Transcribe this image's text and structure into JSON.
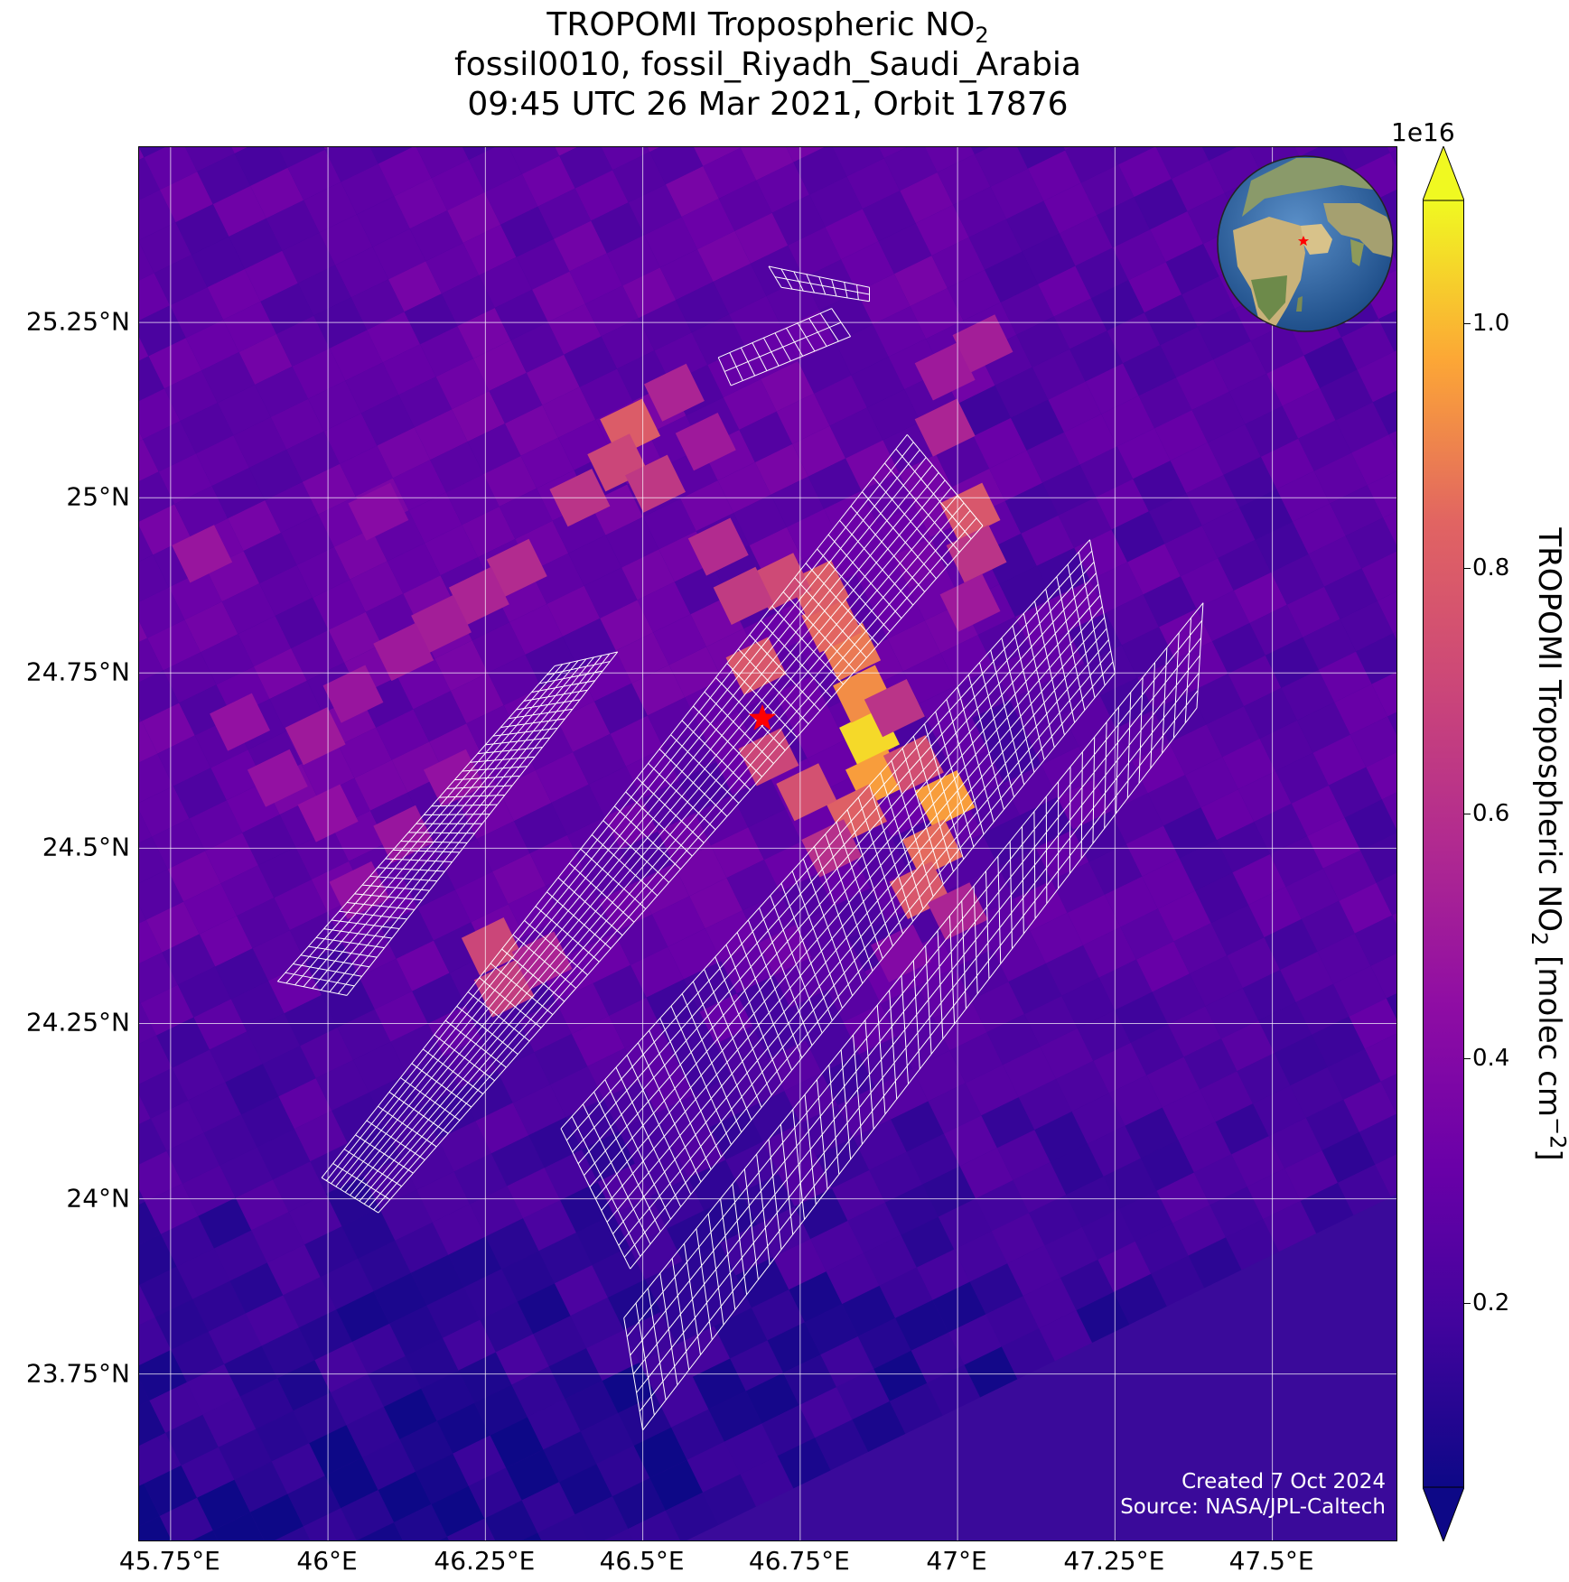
{
  "title": {
    "line1_main": "TROPOMI Tropospheric NO",
    "line1_sub": "2",
    "line2": "fossil0010, fossil_Riyadh_Saudi_Arabia",
    "line3": "09:45 UTC 26 Mar 2021, Orbit 17876"
  },
  "chart_data": {
    "type": "heatmap",
    "x_ticks": [
      "45.75°E",
      "46°E",
      "46.25°E",
      "46.5°E",
      "46.75°E",
      "47°E",
      "47.25°E",
      "47.5°E"
    ],
    "y_ticks": [
      "25.25°N",
      "25°N",
      "24.75°N",
      "24.5°N",
      "24.25°N",
      "24°N",
      "23.75°N"
    ],
    "x_values": [
      45.75,
      46.0,
      46.25,
      46.5,
      46.75,
      47.0,
      47.25,
      47.5
    ],
    "y_values": [
      25.25,
      25.0,
      24.75,
      24.5,
      24.25,
      24.0,
      23.75
    ],
    "xlim": [
      45.7,
      47.7
    ],
    "ylim": [
      23.51,
      25.5
    ],
    "grid": true,
    "colormap": "plasma",
    "colorbar": {
      "label_main": "TROPOMI Tropospheric NO",
      "label_sub": "2",
      "label_unit_pre": " [molec cm",
      "label_unit_sup": "−2",
      "label_unit_post": "]",
      "exponent": "1e16",
      "ticks": [
        "0.2",
        "0.4",
        "0.6",
        "0.8",
        "1.0"
      ],
      "tick_values": [
        0.2,
        0.4,
        0.6,
        0.8,
        1.0
      ],
      "range": [
        0.05,
        1.1
      ],
      "extend": "both"
    },
    "source_marker": {
      "lon": 46.69,
      "lat": 24.685,
      "color": "#ff0000",
      "shape": "star"
    }
  },
  "inset": {
    "type": "globe",
    "marker_color": "#ff0000"
  },
  "credit": {
    "line1": "Created 7 Oct 2024",
    "line2": "Source: NASA/JPL-Caltech"
  }
}
